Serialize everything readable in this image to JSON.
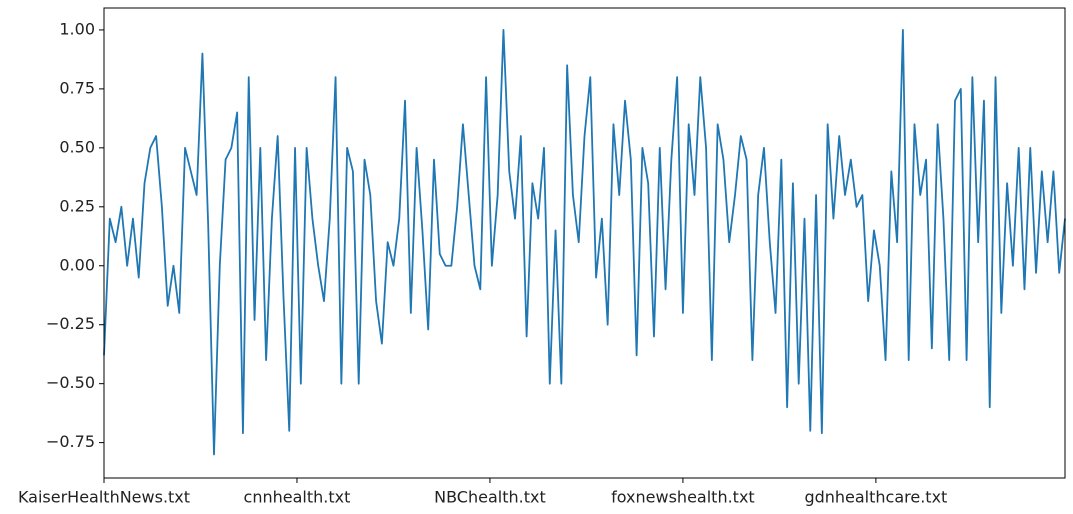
{
  "chart_data": {
    "type": "line",
    "x": [
      0,
      3,
      6,
      9,
      12,
      15,
      18,
      21,
      24,
      27,
      30,
      33,
      36,
      39,
      42,
      45,
      48,
      51,
      54,
      57,
      60,
      63,
      66,
      69,
      72,
      75,
      78,
      81,
      84,
      87,
      90,
      93,
      96,
      99,
      102,
      105,
      108,
      111,
      114,
      117,
      120,
      123,
      126,
      129,
      132,
      135,
      138,
      141,
      144,
      147,
      150,
      153,
      156,
      159,
      162,
      165,
      168,
      171,
      174,
      177,
      180,
      183,
      186,
      189,
      192,
      195,
      198,
      201,
      204,
      207,
      210,
      213,
      216,
      219,
      222,
      225,
      228,
      231,
      234,
      237,
      240,
      243,
      246,
      249,
      252,
      255,
      258,
      261,
      264,
      267,
      270,
      273,
      276,
      279,
      282,
      285,
      288,
      291,
      294,
      297,
      300,
      303,
      306,
      309,
      312,
      315,
      318,
      321,
      324,
      327,
      330,
      333,
      336,
      339,
      342,
      345,
      348,
      351,
      354,
      357,
      360,
      363,
      366,
      369,
      372,
      375,
      378,
      381,
      384,
      387,
      390,
      393,
      396,
      399,
      402,
      405,
      408,
      411,
      414,
      417,
      420,
      423,
      426,
      429,
      432,
      435,
      438,
      441,
      444,
      447,
      450,
      453,
      456,
      459,
      462,
      465,
      468,
      471,
      474,
      477,
      480,
      483,
      486,
      489,
      492,
      495,
      498
    ],
    "values": [
      -0.38,
      0.2,
      0.1,
      0.25,
      0,
      0.2,
      -0.05,
      0.35,
      0.5,
      0.55,
      0.25,
      -0.17,
      0,
      -0.2,
      0.5,
      0.4,
      0.3,
      0.9,
      0.17,
      -0.8,
      0,
      0.45,
      0.5,
      0.65,
      -0.71,
      0.8,
      -0.23,
      0.5,
      -0.4,
      0.2,
      0.55,
      -0.13,
      -0.7,
      0.5,
      -0.5,
      0.5,
      0.2,
      0,
      -0.15,
      0.2,
      0.8,
      -0.5,
      0.5,
      0.4,
      -0.5,
      0.45,
      0.3,
      -0.15,
      -0.33,
      0.1,
      0,
      0.2,
      0.7,
      -0.2,
      0.5,
      0.15,
      -0.27,
      0.45,
      0.05,
      0,
      0,
      0.25,
      0.6,
      0.3,
      0,
      -0.1,
      0.8,
      0,
      0.3,
      1.0,
      0.4,
      0.2,
      0.55,
      -0.3,
      0.35,
      0.2,
      0.5,
      -0.5,
      0.15,
      -0.5,
      0.85,
      0.3,
      0.1,
      0.55,
      0.8,
      -0.05,
      0.2,
      -0.25,
      0.6,
      0.3,
      0.7,
      0.45,
      -0.38,
      0.5,
      0.35,
      -0.3,
      0.5,
      -0.1,
      0.45,
      0.8,
      -0.2,
      0.6,
      0.3,
      0.8,
      0.5,
      -0.4,
      0.6,
      0.45,
      0.1,
      0.3,
      0.55,
      0.45,
      -0.4,
      0.3,
      0.5,
      0.1,
      -0.2,
      0.45,
      -0.6,
      0.35,
      -0.5,
      0.2,
      -0.7,
      0.3,
      -0.71,
      0.6,
      0.2,
      0.55,
      0.3,
      0.45,
      0.25,
      0.3,
      -0.15,
      0.15,
      0,
      -0.4,
      0.4,
      0.1,
      1.0,
      -0.4,
      0.6,
      0.3,
      0.45,
      -0.35,
      0.6,
      0.2,
      -0.4,
      0.7,
      0.75,
      -0.4,
      0.8,
      0.1,
      0.7,
      -0.6,
      0.8,
      -0.2,
      0.35,
      0,
      0.5,
      -0.1,
      0.5,
      -0.03,
      0.4,
      0.1,
      0.4,
      -0.03,
      0.2
    ],
    "color": "#1f77b4",
    "xlim": [
      0,
      498
    ],
    "xticks": [
      {
        "value": 0,
        "label": "KaiserHealthNews.txt"
      },
      {
        "value": 100,
        "label": "cnnhealth.txt"
      },
      {
        "value": 200,
        "label": "NBChealth.txt"
      },
      {
        "value": 300,
        "label": "foxnewshealth.txt"
      },
      {
        "value": 400,
        "label": "gdnhealthcare.txt"
      }
    ],
    "ylim": [
      -0.9,
      1.093
    ],
    "yticks": [
      {
        "value": -0.75,
        "label": "−0.75"
      },
      {
        "value": -0.5,
        "label": "−0.50"
      },
      {
        "value": -0.25,
        "label": "−0.25"
      },
      {
        "value": 0,
        "label": "0.00"
      },
      {
        "value": 0.25,
        "label": "0.25"
      },
      {
        "value": 0.5,
        "label": "0.50"
      },
      {
        "value": 0.75,
        "label": "0.75"
      },
      {
        "value": 1,
        "label": "1.00"
      }
    ],
    "grid": false
  }
}
